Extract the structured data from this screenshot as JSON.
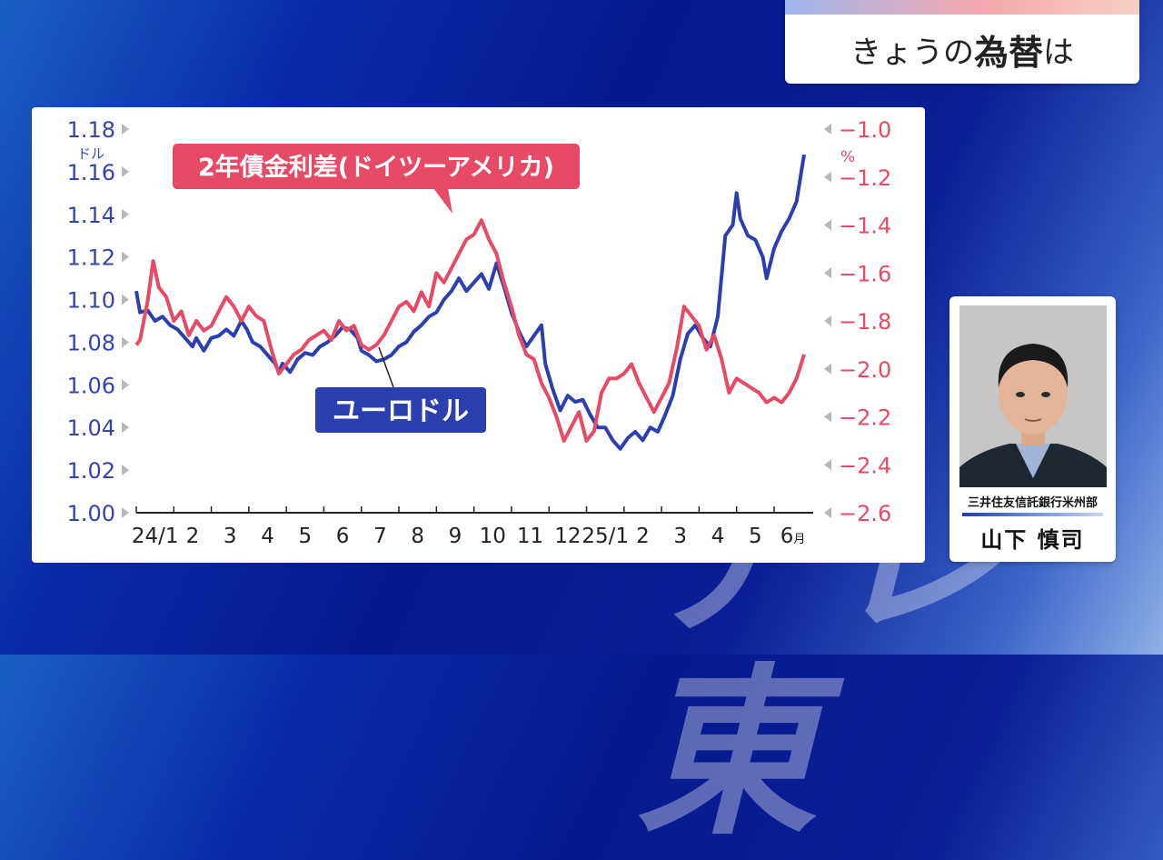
{
  "header": {
    "title_prefix": "きょうの",
    "title_bold": "為替",
    "title_suffix": "は"
  },
  "watermark": {
    "text": "テレ東"
  },
  "presenter": {
    "affiliation": "三井住友信託銀行米州部",
    "name": "山下 慎司"
  },
  "colors": {
    "eurusd": "#2b3fae",
    "spread": "#e64a64",
    "left_axis_text": "#3445a8",
    "right_axis_text": "#e64a64"
  },
  "chart_data": {
    "type": "line",
    "left_axis": {
      "unit": "ドル",
      "range": [
        1.0,
        1.18
      ],
      "ticks": [
        "1.18",
        "1.16",
        "1.14",
        "1.12",
        "1.10",
        "1.08",
        "1.06",
        "1.04",
        "1.02",
        "1.00"
      ]
    },
    "right_axis": {
      "unit": "%",
      "range": [
        -2.6,
        -1.0
      ],
      "ticks": [
        "−1.0",
        "−1.2",
        "−1.4",
        "−1.6",
        "−1.8",
        "−2.0",
        "−2.2",
        "−2.4",
        "−2.6"
      ]
    },
    "x_axis": {
      "ticks": [
        "24/1",
        "2",
        "3",
        "4",
        "5",
        "6",
        "7",
        "8",
        "9",
        "10",
        "11",
        "12",
        "25/1",
        "2",
        "3",
        "4",
        "5",
        "6"
      ],
      "last_tick_unit": "月"
    },
    "x_range": [
      0,
      17.8
    ],
    "series": [
      {
        "name": "ユーロドル",
        "axis": "left",
        "points": [
          [
            0.0,
            1.104
          ],
          [
            0.1,
            1.094
          ],
          [
            0.3,
            1.095
          ],
          [
            0.5,
            1.09
          ],
          [
            0.7,
            1.092
          ],
          [
            0.9,
            1.088
          ],
          [
            1.1,
            1.086
          ],
          [
            1.3,
            1.082
          ],
          [
            1.5,
            1.078
          ],
          [
            1.6,
            1.082
          ],
          [
            1.8,
            1.076
          ],
          [
            2.0,
            1.082
          ],
          [
            2.2,
            1.083
          ],
          [
            2.4,
            1.086
          ],
          [
            2.6,
            1.083
          ],
          [
            2.8,
            1.09
          ],
          [
            2.95,
            1.086
          ],
          [
            3.1,
            1.08
          ],
          [
            3.3,
            1.078
          ],
          [
            3.5,
            1.074
          ],
          [
            3.7,
            1.07
          ],
          [
            3.8,
            1.066
          ],
          [
            3.9,
            1.07
          ],
          [
            4.1,
            1.066
          ],
          [
            4.3,
            1.072
          ],
          [
            4.5,
            1.075
          ],
          [
            4.7,
            1.074
          ],
          [
            4.9,
            1.078
          ],
          [
            5.1,
            1.08
          ],
          [
            5.3,
            1.083
          ],
          [
            5.5,
            1.087
          ],
          [
            5.7,
            1.086
          ],
          [
            5.9,
            1.082
          ],
          [
            6.0,
            1.076
          ],
          [
            6.2,
            1.074
          ],
          [
            6.4,
            1.071
          ],
          [
            6.6,
            1.072
          ],
          [
            6.8,
            1.074
          ],
          [
            7.0,
            1.078
          ],
          [
            7.2,
            1.08
          ],
          [
            7.4,
            1.085
          ],
          [
            7.6,
            1.088
          ],
          [
            7.8,
            1.092
          ],
          [
            8.0,
            1.094
          ],
          [
            8.2,
            1.1
          ],
          [
            8.4,
            1.104
          ],
          [
            8.6,
            1.11
          ],
          [
            8.8,
            1.104
          ],
          [
            9.0,
            1.108
          ],
          [
            9.2,
            1.112
          ],
          [
            9.4,
            1.105
          ],
          [
            9.6,
            1.117
          ],
          [
            9.8,
            1.106
          ],
          [
            10.0,
            1.094
          ],
          [
            10.2,
            1.085
          ],
          [
            10.4,
            1.078
          ],
          [
            10.6,
            1.083
          ],
          [
            10.8,
            1.088
          ],
          [
            10.9,
            1.07
          ],
          [
            11.1,
            1.058
          ],
          [
            11.3,
            1.048
          ],
          [
            11.5,
            1.055
          ],
          [
            11.7,
            1.052
          ],
          [
            11.9,
            1.053
          ],
          [
            12.1,
            1.046
          ],
          [
            12.3,
            1.04
          ],
          [
            12.5,
            1.04
          ],
          [
            12.7,
            1.034
          ],
          [
            12.9,
            1.03
          ],
          [
            13.1,
            1.035
          ],
          [
            13.3,
            1.038
          ],
          [
            13.5,
            1.034
          ],
          [
            13.7,
            1.04
          ],
          [
            13.9,
            1.038
          ],
          [
            14.1,
            1.046
          ],
          [
            14.3,
            1.055
          ],
          [
            14.5,
            1.072
          ],
          [
            14.7,
            1.084
          ],
          [
            14.9,
            1.088
          ],
          [
            15.1,
            1.082
          ],
          [
            15.3,
            1.078
          ],
          [
            15.5,
            1.092
          ],
          [
            15.7,
            1.13
          ],
          [
            15.9,
            1.135
          ],
          [
            16.0,
            1.15
          ],
          [
            16.1,
            1.138
          ],
          [
            16.3,
            1.13
          ],
          [
            16.5,
            1.128
          ],
          [
            16.7,
            1.12
          ],
          [
            16.8,
            1.11
          ],
          [
            17.0,
            1.124
          ],
          [
            17.2,
            1.132
          ],
          [
            17.4,
            1.138
          ],
          [
            17.6,
            1.146
          ],
          [
            17.8,
            1.168
          ]
        ]
      },
      {
        "name": "2年債金利差(ドイツーアメリカ)",
        "axis": "right",
        "points": [
          [
            0.0,
            -1.9
          ],
          [
            0.1,
            -1.88
          ],
          [
            0.3,
            -1.72
          ],
          [
            0.45,
            -1.55
          ],
          [
            0.6,
            -1.66
          ],
          [
            0.8,
            -1.7
          ],
          [
            1.0,
            -1.8
          ],
          [
            1.2,
            -1.76
          ],
          [
            1.4,
            -1.86
          ],
          [
            1.6,
            -1.8
          ],
          [
            1.8,
            -1.84
          ],
          [
            2.0,
            -1.82
          ],
          [
            2.2,
            -1.76
          ],
          [
            2.4,
            -1.7
          ],
          [
            2.6,
            -1.74
          ],
          [
            2.8,
            -1.8
          ],
          [
            3.0,
            -1.74
          ],
          [
            3.2,
            -1.78
          ],
          [
            3.4,
            -1.8
          ],
          [
            3.6,
            -1.92
          ],
          [
            3.8,
            -2.02
          ],
          [
            4.0,
            -1.98
          ],
          [
            4.2,
            -1.94
          ],
          [
            4.4,
            -1.92
          ],
          [
            4.6,
            -1.88
          ],
          [
            4.8,
            -1.86
          ],
          [
            5.0,
            -1.84
          ],
          [
            5.2,
            -1.88
          ],
          [
            5.4,
            -1.8
          ],
          [
            5.6,
            -1.84
          ],
          [
            5.8,
            -1.82
          ],
          [
            6.0,
            -1.9
          ],
          [
            6.2,
            -1.92
          ],
          [
            6.4,
            -1.9
          ],
          [
            6.6,
            -1.86
          ],
          [
            6.8,
            -1.8
          ],
          [
            7.0,
            -1.74
          ],
          [
            7.2,
            -1.72
          ],
          [
            7.4,
            -1.76
          ],
          [
            7.6,
            -1.68
          ],
          [
            7.8,
            -1.74
          ],
          [
            8.0,
            -1.6
          ],
          [
            8.2,
            -1.64
          ],
          [
            8.4,
            -1.58
          ],
          [
            8.6,
            -1.52
          ],
          [
            8.8,
            -1.46
          ],
          [
            9.0,
            -1.44
          ],
          [
            9.2,
            -1.38
          ],
          [
            9.4,
            -1.46
          ],
          [
            9.6,
            -1.52
          ],
          [
            9.8,
            -1.64
          ],
          [
            10.0,
            -1.74
          ],
          [
            10.2,
            -1.86
          ],
          [
            10.4,
            -1.94
          ],
          [
            10.6,
            -1.96
          ],
          [
            10.8,
            -2.06
          ],
          [
            11.0,
            -2.12
          ],
          [
            11.2,
            -2.2
          ],
          [
            11.4,
            -2.3
          ],
          [
            11.6,
            -2.24
          ],
          [
            11.8,
            -2.18
          ],
          [
            12.0,
            -2.3
          ],
          [
            12.2,
            -2.26
          ],
          [
            12.4,
            -2.1
          ],
          [
            12.6,
            -2.04
          ],
          [
            12.8,
            -2.04
          ],
          [
            13.0,
            -2.02
          ],
          [
            13.2,
            -1.98
          ],
          [
            13.4,
            -2.06
          ],
          [
            13.6,
            -2.12
          ],
          [
            13.8,
            -2.18
          ],
          [
            14.0,
            -2.12
          ],
          [
            14.2,
            -2.06
          ],
          [
            14.4,
            -1.92
          ],
          [
            14.6,
            -1.74
          ],
          [
            14.8,
            -1.78
          ],
          [
            15.0,
            -1.82
          ],
          [
            15.2,
            -1.92
          ],
          [
            15.4,
            -1.86
          ],
          [
            15.6,
            -1.96
          ],
          [
            15.8,
            -2.1
          ],
          [
            16.0,
            -2.04
          ],
          [
            16.2,
            -2.06
          ],
          [
            16.4,
            -2.08
          ],
          [
            16.6,
            -2.1
          ],
          [
            16.8,
            -2.14
          ],
          [
            17.0,
            -2.12
          ],
          [
            17.2,
            -2.14
          ],
          [
            17.4,
            -2.1
          ],
          [
            17.6,
            -2.04
          ],
          [
            17.8,
            -1.94
          ]
        ]
      }
    ]
  }
}
